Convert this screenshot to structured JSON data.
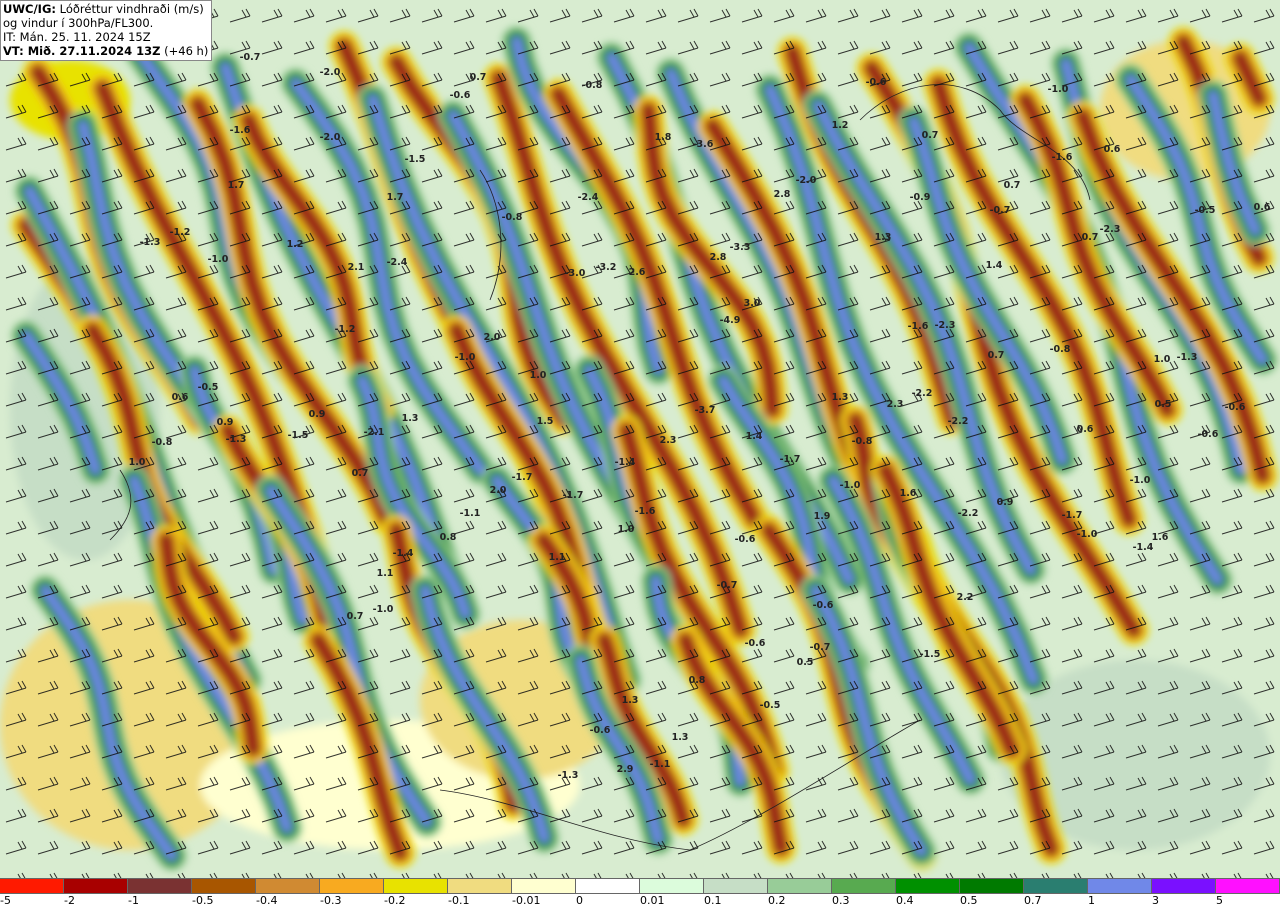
{
  "title": {
    "product": "UWC/IG:",
    "line1_rest": "Lóðréttur vindhraði (m/s)",
    "line2": "og vindur í 300hPa/FL300.",
    "line3": "IT: Mán. 25. 11. 2024 15Z",
    "line4_bold": "VT: Mið. 27.11.2024 13Z",
    "line4_rest": "(+46 h)"
  },
  "colorbar": [
    {
      "label": "-5",
      "color": "#ff1a00"
    },
    {
      "label": "-2",
      "color": "#a80000"
    },
    {
      "label": "-1",
      "color": "#7a3232"
    },
    {
      "label": "-0.5",
      "color": "#a85600"
    },
    {
      "label": "-0.4",
      "color": "#d08a32"
    },
    {
      "label": "-0.3",
      "color": "#f8aa20"
    },
    {
      "label": "-0.2",
      "color": "#e8e200"
    },
    {
      "label": "-0.1",
      "color": "#f0dc80"
    },
    {
      "label": "-0.01",
      "color": "#ffffd0"
    },
    {
      "label": "0",
      "color": "#ffffff"
    },
    {
      "label": "0.01",
      "color": "#dcfcdc"
    },
    {
      "label": "0.1",
      "color": "#c6dec6"
    },
    {
      "label": "0.2",
      "color": "#98cc98"
    },
    {
      "label": "0.3",
      "color": "#58aa50"
    },
    {
      "label": "0.4",
      "color": "#009000"
    },
    {
      "label": "0.5",
      "color": "#007a00"
    },
    {
      "label": "0.7",
      "color": "#2a7e70"
    },
    {
      "label": "1",
      "color": "#7088e8"
    },
    {
      "label": "3",
      "color": "#7a10ff"
    },
    {
      "label": "5",
      "color": "#ff10ff"
    }
  ],
  "map": {
    "background_color": "#d8ecd0",
    "wind_barb_color": "#000000",
    "contour_labels": [
      "-0.7",
      "-2.0",
      "-0.6",
      "0.7",
      "-0.8",
      "-0.6",
      "-1.0",
      "-1.6",
      "-2.0",
      "-1.5",
      "1.8",
      "-3.6",
      "1.2",
      "0.7",
      "-1.6",
      "0.6",
      "1.7",
      "1.7",
      "-2.4",
      "2.8",
      "-2.0",
      "-0.9",
      "0.7",
      "-0.7",
      "-0.5",
      "0.6",
      "-1.3",
      "-1.2",
      "-0.8",
      "-3.3",
      "2.8",
      "1.3",
      "0.7",
      "-2.3",
      "1.2",
      "-1.0",
      "2.1",
      "-2.4",
      "-3.0",
      "-3.2",
      "2.6",
      "1.4",
      "3.0",
      "-4.9",
      "-1.2",
      "2.0",
      "-1.6",
      "-2.3",
      "-0.8",
      "1.0",
      "-1.3",
      "-1.0",
      "1.0",
      "0.7",
      "-0.5",
      "0.6",
      "1.3",
      "2.3",
      "-2.2",
      "-3.7",
      "0.5",
      "-0.6",
      "0.9",
      "0.9",
      "1.3",
      "1.5",
      "-2.2",
      "0.6",
      "-0.8",
      "-1.5",
      "-2.1",
      "-1.3",
      "1.4",
      "2.3",
      "-0.8",
      "-1.7",
      "-0.6",
      "1.0",
      "0.7",
      "-1.4",
      "-1.0",
      "1.6",
      "-1.0",
      "-1.7",
      "2.0",
      "-1.7",
      "1.9",
      "0.9",
      "-2.2",
      "-1.7",
      "-1.6",
      "-1.1",
      "1.0",
      "-1.0",
      "1.6",
      "-1.4",
      "0.8",
      "-0.6",
      "-1.4",
      "1.1",
      "1.1",
      "-0.7",
      "2.2",
      "-1.0",
      "-0.6",
      "0.7",
      "-0.6",
      "-0.7",
      "0.5",
      "-1.5",
      "0.8",
      "1.3",
      "-0.5",
      "-0.6",
      "1.3",
      "-1.1",
      "2.9",
      "-1.3"
    ]
  }
}
